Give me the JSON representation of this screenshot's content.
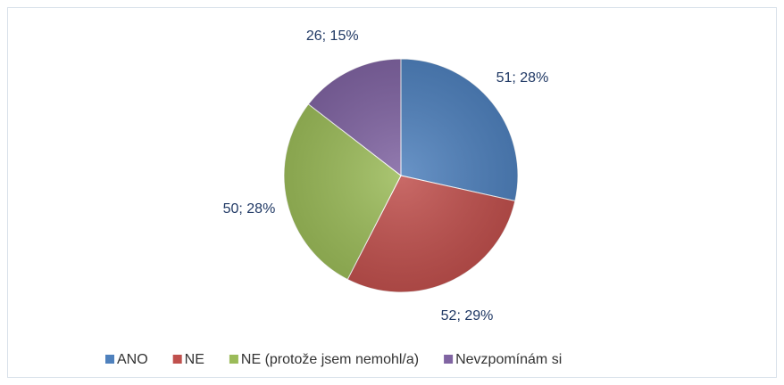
{
  "chart_data": {
    "type": "pie",
    "categories": [
      "ANO",
      "NE",
      "NE (protože jsem nemohl/a)",
      "Nevzpomínám si"
    ],
    "values": [
      51,
      52,
      50,
      26
    ],
    "value_labels": [
      "51; 28%",
      "52; 29%",
      "50; 28%",
      "26; 15%"
    ],
    "colors": [
      "#4f81bd",
      "#c0504d",
      "#9bbb59",
      "#8064a2"
    ],
    "legend": "bottom"
  }
}
